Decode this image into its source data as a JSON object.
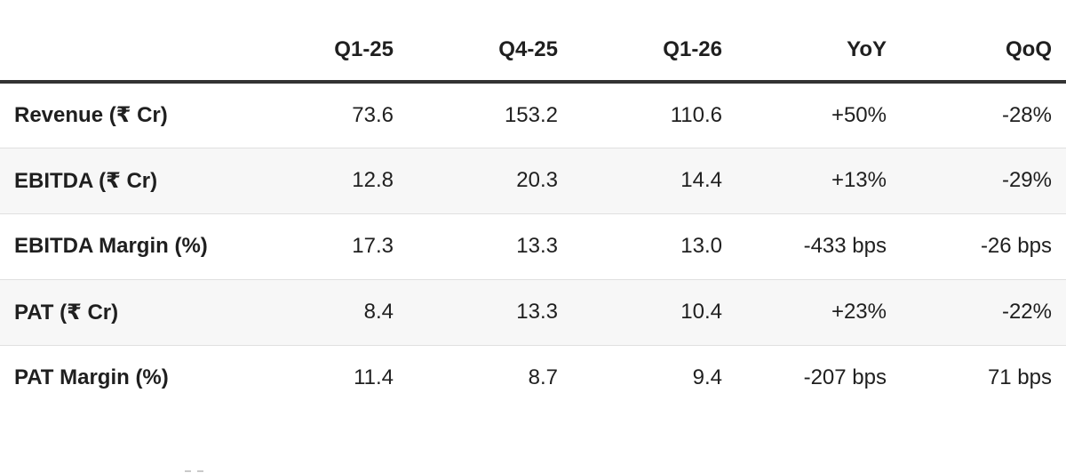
{
  "chart_data": {
    "type": "table",
    "columns": [
      "",
      "Q1-25",
      "Q4-25",
      "Q1-26",
      "YoY",
      "QoQ"
    ],
    "rows": [
      {
        "label": "Revenue (₹ Cr)",
        "values": [
          "73.6",
          "153.2",
          "110.6",
          "+50%",
          "-28%"
        ]
      },
      {
        "label": "EBITDA (₹ Cr)",
        "values": [
          "12.8",
          "20.3",
          "14.4",
          "+13%",
          "-29%"
        ]
      },
      {
        "label": "EBITDA Margin (%)",
        "values": [
          "17.3",
          "13.3",
          "13.0",
          "-433 bps",
          "-26 bps"
        ]
      },
      {
        "label": "PAT (₹ Cr)",
        "values": [
          "8.4",
          "13.3",
          "10.4",
          "+23%",
          "-22%"
        ]
      },
      {
        "label": "PAT Margin (%)",
        "values": [
          "11.4",
          "8.7",
          "9.4",
          "-207 bps",
          "71 bps"
        ]
      }
    ],
    "layout": {
      "value_alignment": "right",
      "label_alignment": "left",
      "zebra_striping": true,
      "header_rule": "thick-bottom-border"
    }
  },
  "colors": {
    "text": "#1f1f1f",
    "header_rule": "#333333",
    "row_separator": "#e0e0e0",
    "row_alt_background": "#f7f7f7",
    "background": "#ffffff"
  }
}
